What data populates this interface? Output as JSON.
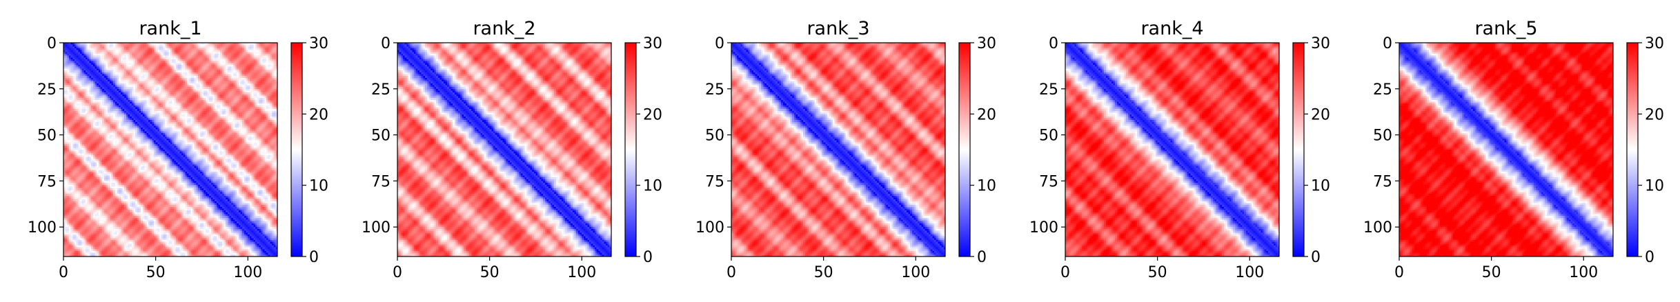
{
  "chart_data": [
    {
      "type": "heatmap",
      "title": "rank_1",
      "matrix_size": 116,
      "xlim": [
        0,
        116
      ],
      "ylim": [
        116,
        0
      ],
      "xticks": [
        0,
        50,
        100
      ],
      "yticks": [
        0,
        25,
        50,
        75,
        100
      ],
      "colormap": "bwr",
      "colorbar": {
        "range": [
          0,
          30
        ],
        "ticks": [
          0,
          10,
          20,
          30
        ]
      },
      "diagonal_period": 25,
      "diagonal_band_strength": 0.95,
      "background_level": 19
    },
    {
      "type": "heatmap",
      "title": "rank_2",
      "matrix_size": 116,
      "xlim": [
        0,
        116
      ],
      "ylim": [
        116,
        0
      ],
      "xticks": [
        0,
        50,
        100
      ],
      "yticks": [
        0,
        25,
        50,
        75,
        100
      ],
      "colormap": "bwr",
      "colorbar": {
        "range": [
          0,
          30
        ],
        "ticks": [
          0,
          10,
          20,
          30
        ]
      },
      "diagonal_period": 27,
      "diagonal_band_strength": 0.85,
      "background_level": 21
    },
    {
      "type": "heatmap",
      "title": "rank_3",
      "matrix_size": 116,
      "xlim": [
        0,
        116
      ],
      "ylim": [
        116,
        0
      ],
      "xticks": [
        0,
        50,
        100
      ],
      "yticks": [
        0,
        25,
        50,
        75,
        100
      ],
      "colormap": "bwr",
      "colorbar": {
        "range": [
          0,
          30
        ],
        "ticks": [
          0,
          10,
          20,
          30
        ]
      },
      "diagonal_period": 27,
      "diagonal_band_strength": 0.7,
      "background_level": 22
    },
    {
      "type": "heatmap",
      "title": "rank_4",
      "matrix_size": 116,
      "xlim": [
        0,
        116
      ],
      "ylim": [
        116,
        0
      ],
      "xticks": [
        0,
        50,
        100
      ],
      "yticks": [
        0,
        25,
        50,
        75,
        100
      ],
      "colormap": "bwr",
      "colorbar": {
        "range": [
          0,
          30
        ],
        "ticks": [
          0,
          10,
          20,
          30
        ]
      },
      "diagonal_period": 27,
      "diagonal_band_strength": 0.5,
      "background_level": 24
    },
    {
      "type": "heatmap",
      "title": "rank_5",
      "matrix_size": 116,
      "xlim": [
        0,
        116
      ],
      "ylim": [
        116,
        0
      ],
      "xticks": [
        0,
        50,
        100
      ],
      "yticks": [
        0,
        25,
        50,
        75,
        100
      ],
      "colormap": "bwr",
      "colorbar": {
        "range": [
          0,
          30
        ],
        "ticks": [
          0,
          10,
          20,
          30
        ]
      },
      "diagonal_period": 27,
      "diagonal_band_strength": 0.3,
      "background_level": 26
    }
  ]
}
